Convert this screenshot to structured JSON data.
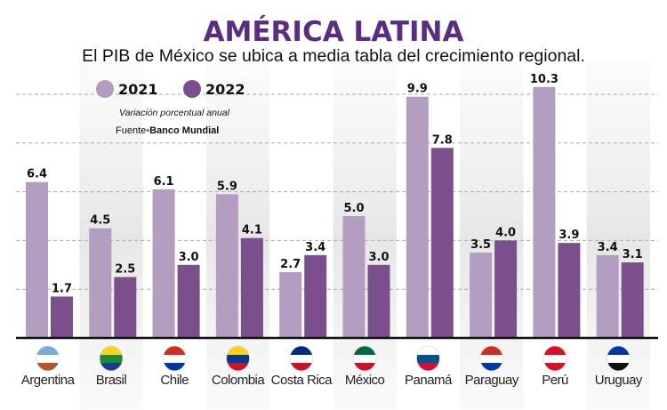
{
  "chart_data": {
    "type": "bar",
    "title": "AMÉRICA LATINA",
    "subtitle": "El PIB de México se ubica a media tabla del crecimiento regional.",
    "note": "Variación porcentual anual",
    "source_label": "Fuente",
    "source": "Banco Mundial",
    "categories": [
      "Argentina",
      "Brasil",
      "Chile",
      "Colombia",
      "Costa Rica",
      "México",
      "Panamá",
      "Paraguay",
      "Perú",
      "Uruguay"
    ],
    "series": [
      {
        "name": "2021",
        "color": "#b39dc1",
        "values": [
          6.4,
          4.5,
          6.1,
          5.9,
          2.7,
          5.0,
          9.9,
          3.5,
          10.3,
          3.4
        ]
      },
      {
        "name": "2022",
        "color": "#7a4f8c",
        "values": [
          1.7,
          2.5,
          3.0,
          4.1,
          3.4,
          3.0,
          7.8,
          4.0,
          3.9,
          3.1
        ]
      }
    ],
    "ylim": [
      0,
      10.5
    ],
    "grid": "dashed horizontal every 2",
    "legend": "top-left",
    "flag_icons": [
      "argentina-flag-icon",
      "brazil-flag-icon",
      "chile-flag-icon",
      "colombia-flag-icon",
      "costa-rica-flag-icon",
      "mexico-flag-icon",
      "panama-flag-icon",
      "paraguay-flag-icon",
      "peru-flag-icon",
      "uruguay-flag-icon"
    ],
    "colors": {
      "title": "#5b2d82",
      "light": "#b39dc1",
      "dark": "#7a4f8c"
    }
  }
}
